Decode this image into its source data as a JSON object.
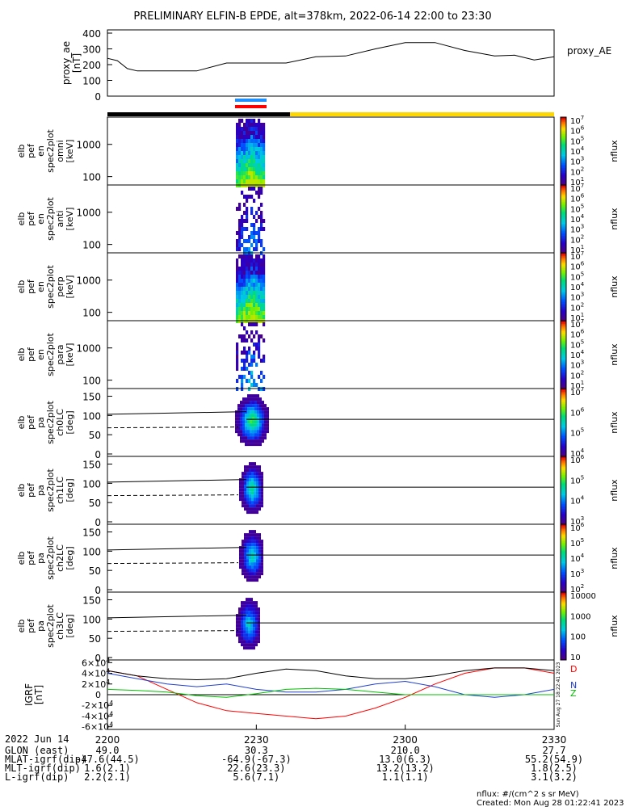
{
  "title": "PRELIMINARY ELFIN-B EPDE, alt=378km, 2022-06-14 22:00 to 23:30",
  "chart_data": [
    {
      "type": "line",
      "name": "proxy_ae",
      "ylabel": "proxy_ae\n[nT]",
      "series_label": "proxy_AE",
      "ylim": [
        0,
        400
      ],
      "yticks": [
        "0",
        "100",
        "200",
        "300",
        "400"
      ],
      "x_min": [
        0,
        2,
        4,
        6,
        8,
        12,
        18,
        24,
        30,
        36,
        42,
        48,
        54,
        60,
        66,
        72,
        78,
        82,
        86,
        90
      ],
      "values": [
        240,
        225,
        175,
        160,
        160,
        160,
        160,
        210,
        210,
        210,
        250,
        255,
        300,
        340,
        340,
        290,
        255,
        260,
        230,
        250
      ]
    },
    {
      "type": "heatmap",
      "name": "elb_pef_en_spec2plot_omni",
      "ylabel": "elb\npef\nen\nspec2plot\nomni\n[keV]",
      "yticks": [
        "100",
        "1000"
      ],
      "colorbar": {
        "label": "nflux",
        "ticks": [
          "10^1",
          "10^2",
          "10^3",
          "10^4",
          "10^5",
          "10^6",
          "10^7"
        ]
      }
    },
    {
      "type": "heatmap",
      "name": "elb_pef_en_spec2plot_anti",
      "ylabel": "elb\npef\nen\nspec2plot\nanti\n[keV]",
      "yticks": [
        "100",
        "1000"
      ],
      "colorbar": {
        "label": "nflux",
        "ticks": [
          "10^1",
          "10^2",
          "10^3",
          "10^4",
          "10^5",
          "10^6",
          "10^7"
        ]
      }
    },
    {
      "type": "heatmap",
      "name": "elb_pef_en_spec2plot_perp",
      "ylabel": "elb\npef\nen\nspec2plot\nperp\n[keV]",
      "yticks": [
        "100",
        "1000"
      ],
      "colorbar": {
        "label": "nflux",
        "ticks": [
          "10^1",
          "10^2",
          "10^3",
          "10^4",
          "10^5",
          "10^6",
          "10^7"
        ]
      }
    },
    {
      "type": "heatmap",
      "name": "elb_pef_en_spec2plot_para",
      "ylabel": "elb\npef\nen\nspec2plot\npara\n[keV]",
      "yticks": [
        "100",
        "1000"
      ],
      "colorbar": {
        "label": "nflux",
        "ticks": [
          "10^1",
          "10^2",
          "10^3",
          "10^4",
          "10^5",
          "10^6",
          "10^7"
        ]
      }
    },
    {
      "type": "heatmap",
      "name": "elb_pef_pa_spec2plot_ch0LC",
      "ylabel": "elb\npef\npa\nspec2plot\nch0LC\n[deg]",
      "yticks": [
        "0",
        "50",
        "100",
        "150"
      ],
      "colorbar": {
        "label": "nflux",
        "ticks": [
          "10^4",
          "10^5",
          "10^6",
          "10^7"
        ]
      }
    },
    {
      "type": "heatmap",
      "name": "elb_pef_pa_spec2plot_ch1LC",
      "ylabel": "elb\npef\npa\nspec2plot\nch1LC\n[deg]",
      "yticks": [
        "0",
        "50",
        "100",
        "150"
      ],
      "colorbar": {
        "label": "nflux",
        "ticks": [
          "10^3",
          "10^4",
          "10^5",
          "10^6"
        ]
      }
    },
    {
      "type": "heatmap",
      "name": "elb_pef_pa_spec2plot_ch2LC",
      "ylabel": "elb\npef\npa\nspec2plot\nch2LC\n[deg]",
      "yticks": [
        "0",
        "50",
        "100",
        "150"
      ],
      "colorbar": {
        "label": "nflux",
        "ticks": [
          "10^2",
          "10^3",
          "10^4",
          "10^5",
          "10^6"
        ]
      }
    },
    {
      "type": "heatmap",
      "name": "elb_pef_pa_spec2plot_ch3LC",
      "ylabel": "elb\npef\npa\nspec2plot\nch3LC\n[deg]",
      "yticks": [
        "0",
        "50",
        "100",
        "150"
      ],
      "colorbar": {
        "label": "nflux",
        "ticks": [
          "10",
          "100",
          "1000",
          "10000"
        ]
      }
    },
    {
      "type": "line",
      "name": "IGRF",
      "ylabel": "IGRF\n[nT]",
      "yticks": [
        "-6×10^4",
        "-4×10^4",
        "-2×10^4",
        "0",
        "2×10^4",
        "4×10^4",
        "6×10^4"
      ],
      "ylim": [
        -60000,
        60000
      ],
      "series": [
        {
          "name": "D",
          "color": "#ff0000",
          "x_min": [
            0,
            6,
            12,
            18,
            24,
            30,
            36,
            42,
            48,
            54,
            60,
            66,
            72,
            78,
            84,
            90
          ],
          "values": [
            45000,
            35000,
            10000,
            -15000,
            -30000,
            -35000,
            -40000,
            -45000,
            -40000,
            -25000,
            -5000,
            20000,
            40000,
            50000,
            50000,
            40000
          ]
        },
        {
          "name": "N",
          "color": "#1f3fcf",
          "x_min": [
            0,
            6,
            12,
            18,
            24,
            30,
            36,
            42,
            48,
            54,
            60,
            66,
            72,
            78,
            84,
            90
          ],
          "values": [
            40000,
            30000,
            20000,
            15000,
            20000,
            10000,
            5000,
            5000,
            10000,
            20000,
            25000,
            15000,
            0,
            -5000,
            0,
            10000
          ]
        },
        {
          "name": "Z",
          "color": "#00c000",
          "x_min": [
            0,
            6,
            12,
            18,
            24,
            30,
            36,
            42,
            48,
            54,
            60,
            66,
            72,
            78,
            84,
            90
          ],
          "values": [
            10000,
            8000,
            5000,
            -2000,
            -5000,
            2000,
            10000,
            12000,
            10000,
            5000,
            0,
            0,
            0,
            0,
            0,
            0
          ]
        },
        {
          "name": "",
          "color": "#000000",
          "x_min": [
            0,
            6,
            12,
            18,
            24,
            30,
            36,
            42,
            48,
            54,
            60,
            66,
            72,
            78,
            84,
            90
          ],
          "values": [
            45000,
            35000,
            30000,
            28000,
            30000,
            40000,
            48000,
            45000,
            35000,
            30000,
            30000,
            35000,
            45000,
            50000,
            50000,
            45000
          ]
        }
      ],
      "timestamp": "Sun Aug 27 18:22:41 2023"
    }
  ],
  "x_axis": {
    "date": "2022 Jun 14",
    "ticks": [
      "2200",
      "2230",
      "2300",
      "2330"
    ]
  },
  "ephemeris": [
    {
      "label": "GLON (east)",
      "values": [
        "49.0",
        "30.3",
        "210.0",
        "27.7"
      ]
    },
    {
      "label": "MLAT-igrf(dip)",
      "values": [
        "-47.6(44.5)",
        "-64.9(-67.3)",
        "13.0(6.3)",
        "55.2(54.9)"
      ]
    },
    {
      "label": "MLT-igrf(dip)",
      "values": [
        "1.6(2.1)",
        "22.6(23.3)",
        "13.2(13.2)",
        "1.8(2.5)"
      ]
    },
    {
      "label": "L-igrf(dip)",
      "values": [
        "2.2(2.1)",
        "5.6(7.1)",
        "1.1(1.1)",
        "3.1(3.2)"
      ]
    }
  ],
  "footnote_units": "nflux: #/(cm^2 s sr MeV)",
  "footnote_created": "Created: Mon Aug 28 01:22:41 2023",
  "colors": {
    "sunlit_bar": "#ffd700",
    "shadow_bar": "#000000",
    "science_blue": "#1e90ff",
    "science_red": "#ff0000"
  }
}
